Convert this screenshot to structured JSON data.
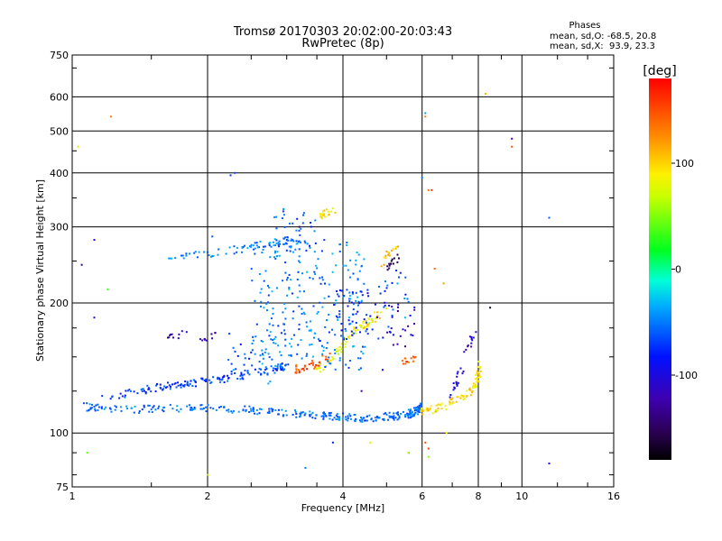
{
  "chart_data": {
    "type": "scatter",
    "title": "Tromsø 20170303 20:02:00-20:03:43",
    "subtitle": "RwPretec (8p)",
    "xlabel": "Frequency [MHz]",
    "ylabel": "Stationary phase Virtual Height [km]",
    "x_scale": "log",
    "y_scale": "log",
    "xlim": [
      1,
      16
    ],
    "ylim": [
      75,
      750
    ],
    "x_ticks": [
      1,
      2,
      4,
      6,
      8,
      10,
      16
    ],
    "x_tick_labels": [
      "1",
      "2",
      "4",
      "6",
      "8",
      "10",
      "16"
    ],
    "y_ticks": [
      75,
      100,
      200,
      300,
      400,
      500,
      600,
      750
    ],
    "y_tick_labels": [
      "75",
      "100",
      "200",
      "300",
      "400",
      "500",
      "600",
      "750"
    ],
    "grid": true,
    "stats": {
      "heading": "Phases",
      "line_o": "mean, sd,O: -68.5, 20.8",
      "line_x": "mean, sd,X:  93.9, 23.3"
    },
    "colorbar": {
      "label": "[deg]",
      "range": [
        -180,
        180
      ],
      "tick_values": [
        100,
        0,
        -100
      ],
      "tick_labels": [
        "100",
        "0",
        "-100"
      ]
    },
    "traces": [
      {
        "freq": [
          1.05,
          1.3,
          1.6,
          2.0,
          2.5,
          3.0,
          3.5,
          4.0,
          4.5,
          5.0,
          5.5,
          5.8,
          6.0
        ],
        "height": [
          115,
          113,
          114,
          114,
          113,
          111,
          110,
          109,
          108,
          109,
          110,
          112,
          115
        ],
        "phase": -55,
        "n": 320
      },
      {
        "freq": [
          1.15,
          1.4,
          1.6,
          1.8,
          2.0,
          2.3,
          2.6,
          2.8,
          3.0
        ],
        "height": [
          120,
          125,
          128,
          130,
          132,
          135,
          138,
          140,
          143
        ],
        "phase": -70,
        "n": 150
      },
      {
        "freq": [
          1.6,
          1.8,
          2.0,
          2.3,
          2.6,
          2.9,
          3.2
        ],
        "height": [
          255,
          258,
          260,
          265,
          272,
          278,
          280
        ],
        "phase": -50,
        "n": 75
      },
      {
        "freq": [
          6.0,
          6.5,
          7.0,
          7.5,
          7.8,
          8.0,
          8.0
        ],
        "height": [
          112,
          114,
          118,
          122,
          128,
          135,
          145
        ],
        "phase": 95,
        "n": 90
      },
      {
        "freq": [
          3.5,
          3.7,
          3.9,
          4.1,
          4.3,
          4.6
        ],
        "height": [
          140,
          145,
          155,
          165,
          175,
          182
        ],
        "phase": 80,
        "n": 55
      },
      {
        "freq": [
          3.1,
          3.3,
          3.5,
          3.7
        ],
        "height": [
          140,
          142,
          145,
          150
        ],
        "phase": 150,
        "n": 35
      },
      {
        "freq": [
          5.4,
          5.6,
          5.8
        ],
        "height": [
          145,
          147,
          148
        ],
        "phase": 140,
        "n": 14
      },
      {
        "freq": [
          4.4,
          4.6,
          4.8,
          5.0
        ],
        "height": [
          175,
          180,
          188,
          195
        ],
        "phase": 95,
        "n": 20
      },
      {
        "freq": [
          3.6,
          3.7,
          3.8
        ],
        "height": [
          318,
          322,
          326
        ],
        "phase": 95,
        "n": 22
      },
      {
        "freq": [
          4.8,
          5.0,
          5.2
        ],
        "height": [
          240,
          255,
          270
        ],
        "phase": 105,
        "n": 14
      },
      {
        "freq": [
          7.0,
          7.3,
          7.6,
          7.8
        ],
        "height": [
          120,
          140,
          155,
          170
        ],
        "phase": -105,
        "n": 30
      },
      {
        "freq": [
          5.0,
          5.2,
          5.4
        ],
        "height": [
          240,
          250,
          260
        ],
        "phase": -150,
        "n": 14
      },
      {
        "freq": [
          1.9,
          2.0,
          2.1
        ],
        "height": [
          160,
          165,
          170
        ],
        "phase": -130,
        "n": 10
      },
      {
        "freq": [
          1.6,
          1.7,
          1.8
        ],
        "height": [
          165,
          168,
          172
        ],
        "phase": -120,
        "n": 10
      }
    ],
    "clusters": [
      {
        "freq_range": [
          2.5,
          4.5
        ],
        "height_range": [
          140,
          280
        ],
        "phase": -50,
        "n": 260
      },
      {
        "freq_range": [
          3.8,
          5.2
        ],
        "height_range": [
          165,
          215
        ],
        "phase": -75,
        "n": 60
      },
      {
        "freq_range": [
          2.8,
          3.5
        ],
        "height_range": [
          260,
          330
        ],
        "phase": -60,
        "n": 35
      },
      {
        "freq_range": [
          5.0,
          5.8
        ],
        "height_range": [
          155,
          200
        ],
        "phase": -110,
        "n": 20
      },
      {
        "freq_range": [
          2.2,
          2.8
        ],
        "height_range": [
          130,
          170
        ],
        "phase": -60,
        "n": 35
      },
      {
        "freq_range": [
          4.8,
          5.6
        ],
        "height_range": [
          200,
          240
        ],
        "phase": -60,
        "n": 15
      }
    ],
    "points": [
      {
        "f": 1.03,
        "h": 460,
        "p": 70
      },
      {
        "f": 1.22,
        "h": 540,
        "p": 130
      },
      {
        "f": 1.2,
        "h": 215,
        "p": 30
      },
      {
        "f": 1.08,
        "h": 90,
        "p": 40
      },
      {
        "f": 1.12,
        "h": 280,
        "p": -110
      },
      {
        "f": 1.12,
        "h": 185,
        "p": -110
      },
      {
        "f": 1.05,
        "h": 245,
        "p": -140
      },
      {
        "f": 2.25,
        "h": 395,
        "p": -70
      },
      {
        "f": 2.3,
        "h": 400,
        "p": -65
      },
      {
        "f": 6.1,
        "h": 550,
        "p": -40
      },
      {
        "f": 6.1,
        "h": 540,
        "p": 130
      },
      {
        "f": 6.2,
        "h": 365,
        "p": 140
      },
      {
        "f": 6.3,
        "h": 365,
        "p": 160
      },
      {
        "f": 6.0,
        "h": 390,
        "p": -50
      },
      {
        "f": 8.3,
        "h": 610,
        "p": 110
      },
      {
        "f": 9.5,
        "h": 480,
        "p": -120
      },
      {
        "f": 9.5,
        "h": 460,
        "p": 150
      },
      {
        "f": 11.5,
        "h": 315,
        "p": -60
      },
      {
        "f": 11.5,
        "h": 85,
        "p": -100
      },
      {
        "f": 8.5,
        "h": 195,
        "p": -170
      },
      {
        "f": 6.7,
        "h": 222,
        "p": 120
      },
      {
        "f": 6.4,
        "h": 240,
        "p": 140
      },
      {
        "f": 6.8,
        "h": 100,
        "p": 90
      },
      {
        "f": 6.2,
        "h": 92,
        "p": 160
      },
      {
        "f": 5.6,
        "h": 90,
        "p": -60
      },
      {
        "f": 5.6,
        "h": 90,
        "p": 60
      },
      {
        "f": 3.3,
        "h": 83,
        "p": -50
      },
      {
        "f": 2.0,
        "h": 80,
        "p": 60
      },
      {
        "f": 4.6,
        "h": 95,
        "p": 70
      },
      {
        "f": 6.1,
        "h": 95,
        "p": 150
      },
      {
        "f": 6.2,
        "h": 88,
        "p": 50
      },
      {
        "f": 3.8,
        "h": 95,
        "p": -80
      },
      {
        "f": 4.4,
        "h": 125,
        "p": -130
      },
      {
        "f": 4.9,
        "h": 140,
        "p": -90
      },
      {
        "f": 2.05,
        "h": 285,
        "p": -60
      },
      {
        "f": 3.2,
        "h": 300,
        "p": -150
      },
      {
        "f": 5.5,
        "h": 185,
        "p": -30
      },
      {
        "f": 5.3,
        "h": 270,
        "p": 120
      }
    ]
  }
}
